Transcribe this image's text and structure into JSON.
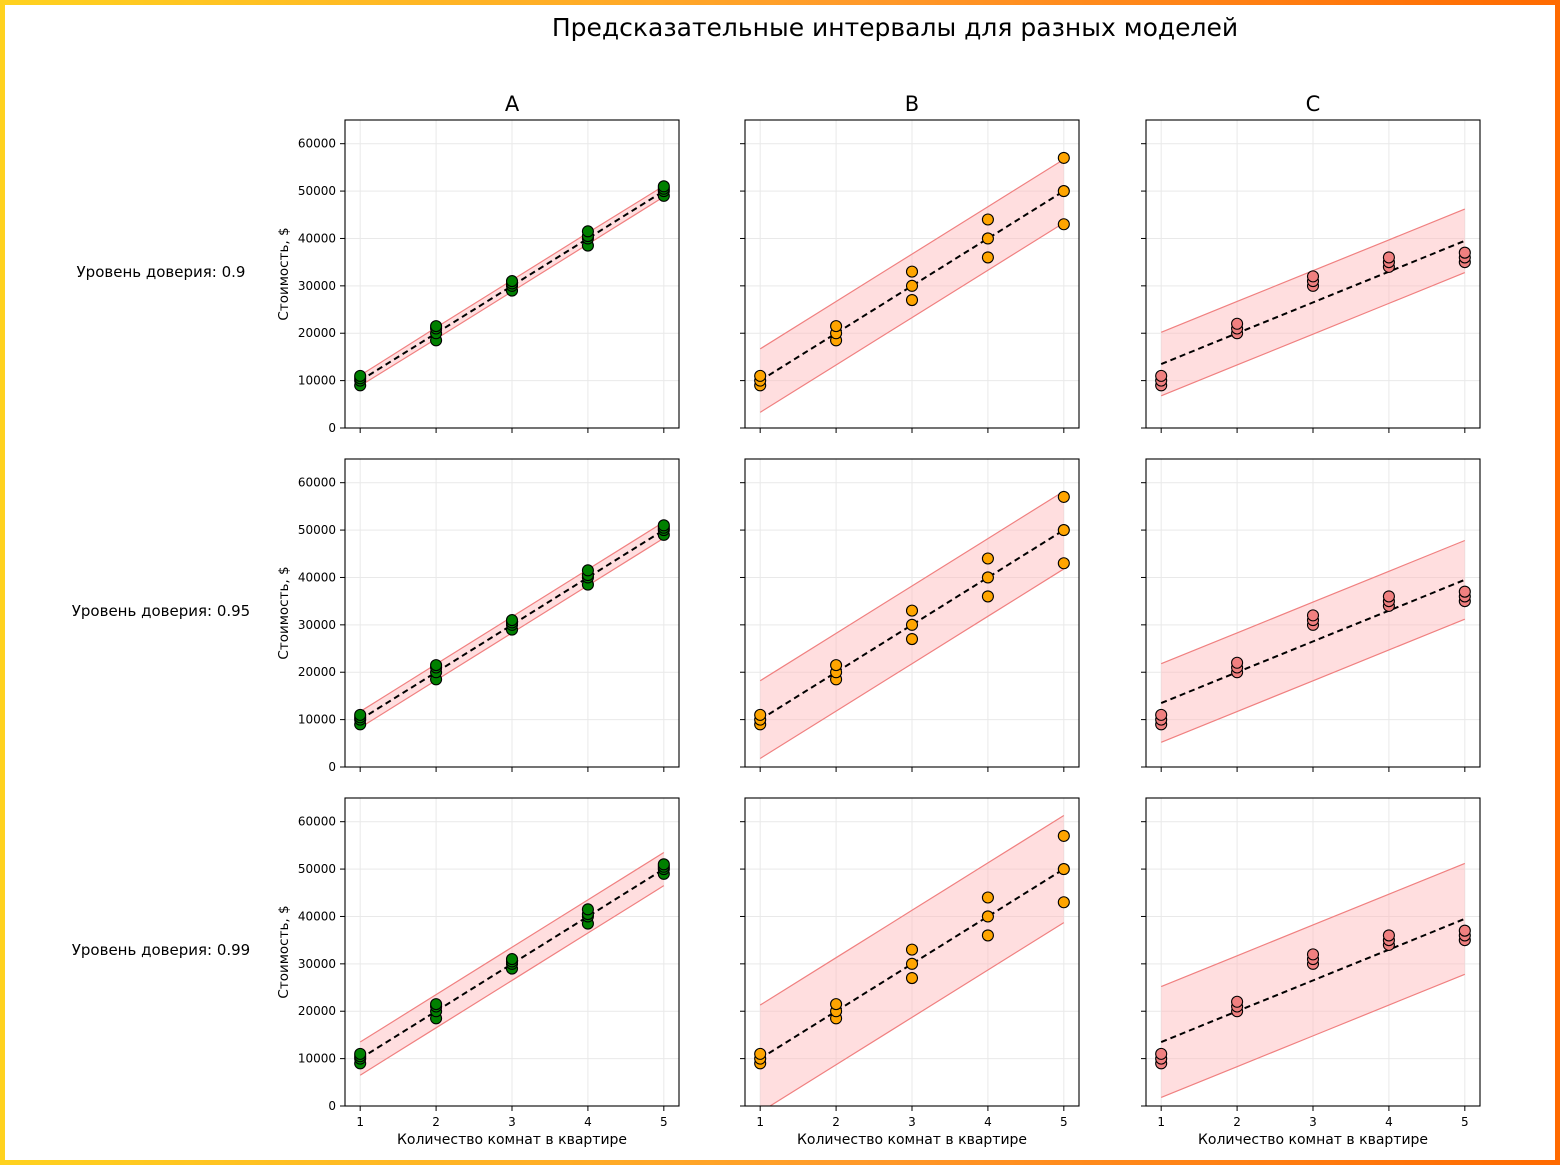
{
  "chart_data": {
    "type": "scatter",
    "title": "Предсказательные интервалы для разных моделей",
    "columns": [
      "A",
      "B",
      "C"
    ],
    "row_labels": [
      "Уровень доверия: 0.9",
      "Уровень доверия: 0.95",
      "Уровень доверия: 0.99"
    ],
    "confidence_levels": [
      0.9,
      0.95,
      0.99
    ],
    "xlabel": "Количество комнат в квартире",
    "ylabel": "Стоимость, $",
    "xticks": [
      1,
      2,
      3,
      4,
      5
    ],
    "yticks": [
      0,
      10000,
      20000,
      30000,
      40000,
      50000,
      60000
    ],
    "xlim": [
      0.8,
      5.2
    ],
    "ylim": [
      0,
      65000
    ],
    "models": [
      {
        "name": "A",
        "point_color": "#008000",
        "x": [
          1,
          1,
          1,
          1,
          2,
          2,
          2,
          2,
          3,
          3,
          3,
          3,
          4,
          4,
          4,
          4,
          5,
          5,
          5,
          5
        ],
        "y": [
          9000,
          10000,
          10500,
          11000,
          18500,
          20000,
          21000,
          21500,
          29000,
          30000,
          30500,
          31000,
          38500,
          40000,
          40500,
          41500,
          49000,
          50000,
          50500,
          51000
        ],
        "fit": {
          "intercept": 0,
          "slope": 10000
        },
        "intervals": [
          {
            "level": 0.9,
            "lower": [
              8900,
              18800,
              28800,
              38800,
              48800
            ],
            "upper": [
              11100,
              21200,
              31200,
              41200,
              51100
            ]
          },
          {
            "level": 0.95,
            "lower": [
              8300,
              18300,
              28300,
              38300,
              48300
            ],
            "upper": [
              11700,
              21700,
              31700,
              41700,
              51700
            ]
          },
          {
            "level": 0.99,
            "lower": [
              6500,
              16500,
              26500,
              36500,
              46500
            ],
            "upper": [
              13500,
              23500,
              33500,
              43500,
              53500
            ]
          }
        ]
      },
      {
        "name": "B",
        "point_color": "#ffa500",
        "x": [
          1,
          1,
          1,
          2,
          2,
          2,
          3,
          3,
          3,
          4,
          4,
          4,
          5,
          5,
          5
        ],
        "y": [
          9000,
          10000,
          11000,
          18500,
          20000,
          21500,
          27000,
          30000,
          33000,
          36000,
          40000,
          44000,
          43000,
          50000,
          57000
        ],
        "fit": {
          "intercept": 0,
          "slope": 10000
        },
        "intervals": [
          {
            "level": 0.9,
            "lower": [
              3300,
              13300,
              23300,
              33300,
              43300
            ],
            "upper": [
              16700,
              26700,
              36700,
              46700,
              56700
            ]
          },
          {
            "level": 0.95,
            "lower": [
              1800,
              11800,
              21800,
              31800,
              41800
            ],
            "upper": [
              18200,
              28200,
              38200,
              48200,
              58200
            ]
          },
          {
            "level": 0.99,
            "lower": [
              -1300,
              8700,
              18700,
              28700,
              38700
            ],
            "upper": [
              21300,
              31300,
              41300,
              51300,
              61300
            ]
          }
        ]
      },
      {
        "name": "C",
        "point_color": "#f08080",
        "x": [
          1,
          1,
          1,
          2,
          2,
          2,
          3,
          3,
          3,
          4,
          4,
          4,
          5,
          5,
          5
        ],
        "y": [
          9000,
          10000,
          11000,
          20000,
          21000,
          22000,
          30000,
          31000,
          32000,
          34000,
          35000,
          36000,
          35000,
          36000,
          37000
        ],
        "fit": {
          "intercept": 7000,
          "slope": 6500
        },
        "intervals": [
          {
            "level": 0.9,
            "lower": [
              6800,
              13300,
              19800,
              26300,
              32800
            ],
            "upper": [
              20200,
              26700,
              33200,
              39700,
              46200
            ]
          },
          {
            "level": 0.95,
            "lower": [
              5200,
              11700,
              18200,
              24700,
              31200
            ],
            "upper": [
              21800,
              28300,
              34800,
              41300,
              47800
            ]
          },
          {
            "level": 0.99,
            "lower": [
              1800,
              8300,
              14800,
              21300,
              27800
            ],
            "upper": [
              25200,
              31700,
              38200,
              44700,
              51200
            ]
          }
        ]
      }
    ],
    "style": {
      "band_fill": "#ffb6b9",
      "band_line": "#f08080",
      "fit_line": "#000000",
      "grid_color": "#e9e9e9"
    }
  }
}
